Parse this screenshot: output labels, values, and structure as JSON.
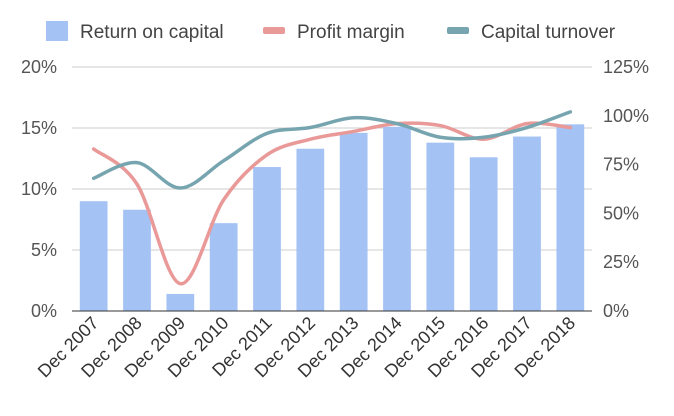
{
  "chart_data": {
    "type": "bar",
    "categories": [
      "Dec 2007",
      "Dec 2008",
      "Dec 2009",
      "Dec 2010",
      "Dec 2011",
      "Dec 2012",
      "Dec 2013",
      "Dec 2014",
      "Dec 2015",
      "Dec 2016",
      "Dec 2017",
      "Dec 2018"
    ],
    "series": [
      {
        "name": "Return on capital",
        "type": "bar",
        "axis": "left",
        "color": "#a4c2f4",
        "values": [
          9.0,
          8.3,
          1.4,
          7.2,
          11.8,
          13.3,
          14.6,
          15.1,
          13.8,
          12.6,
          14.3,
          15.3
        ]
      },
      {
        "name": "Profit margin",
        "type": "line",
        "axis": "right",
        "color": "#ea9999",
        "values": [
          83,
          65,
          14,
          57,
          80,
          88,
          92,
          96,
          95,
          88,
          96,
          94
        ]
      },
      {
        "name": "Capital turnover",
        "type": "line",
        "axis": "right",
        "color": "#76a5af",
        "values": [
          68,
          76,
          63,
          77,
          91,
          94,
          99,
          96,
          89,
          89,
          94,
          102
        ]
      }
    ],
    "y_left": {
      "ticks": [
        "0%",
        "5%",
        "10%",
        "15%",
        "20%"
      ],
      "min": 0,
      "max": 20
    },
    "y_right": {
      "ticks": [
        "0%",
        "25%",
        "50%",
        "75%",
        "100%",
        "125%"
      ],
      "min": 0,
      "max": 125
    },
    "legend": {
      "position": "top",
      "items": [
        "Return on capital",
        "Profit margin",
        "Capital turnover"
      ]
    },
    "grid": true
  }
}
